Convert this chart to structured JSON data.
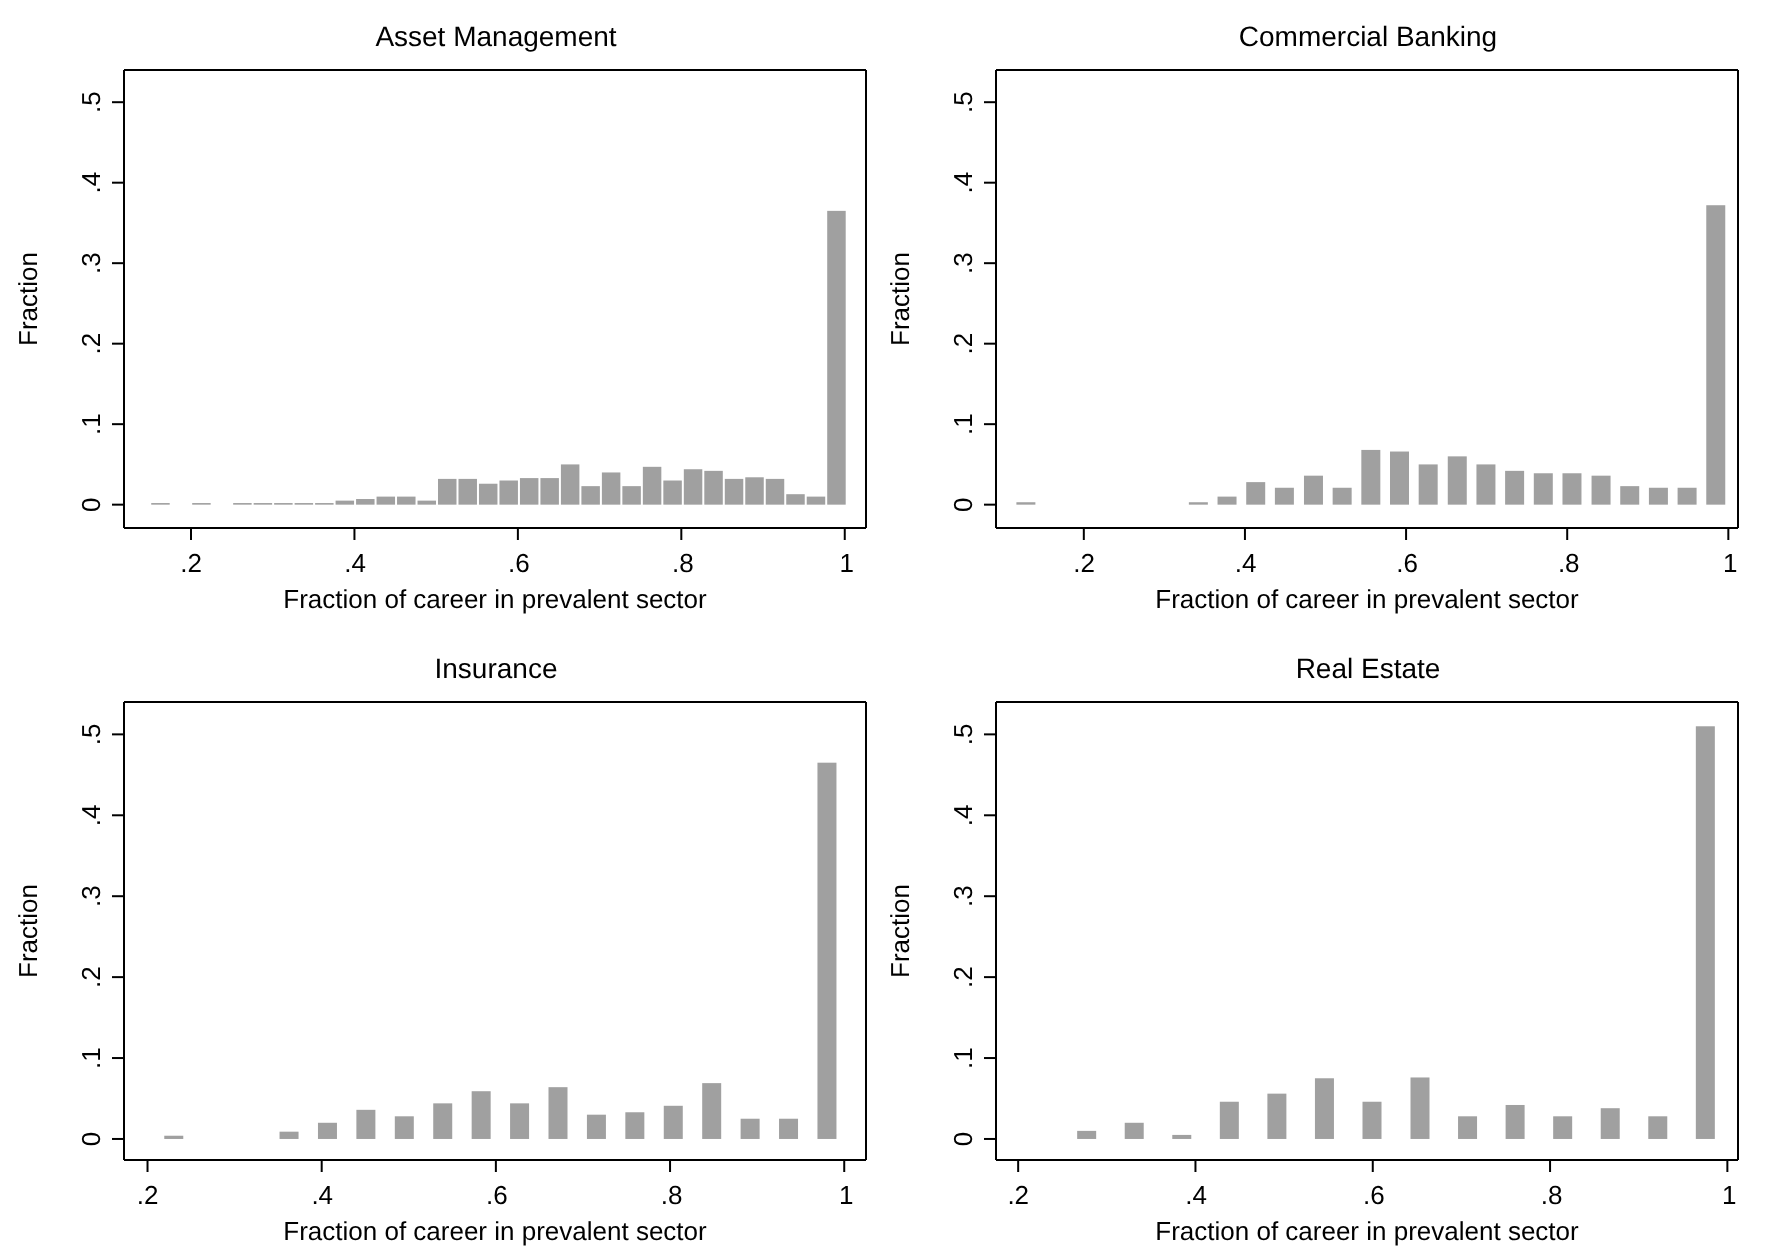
{
  "chart_data": [
    {
      "type": "histogram",
      "title": "Asset Management",
      "xlabel": "Fraction of career in prevalent sector",
      "ylabel": "Fraction",
      "color": "#a0a0a0",
      "bins": [
        0.15,
        0.175,
        0.2,
        0.225,
        0.25,
        0.275,
        0.3,
        0.325,
        0.35,
        0.375,
        0.4,
        0.425,
        0.45,
        0.475,
        0.5,
        0.525,
        0.55,
        0.575,
        0.6,
        0.625,
        0.65,
        0.675,
        0.7,
        0.725,
        0.75,
        0.775,
        0.8,
        0.825,
        0.85,
        0.875,
        0.9,
        0.925,
        0.95,
        0.975,
        1
      ],
      "values": [
        0.002,
        0,
        0.002,
        0,
        0.002,
        0.002,
        0.002,
        0.002,
        0.002,
        0.005,
        0.007,
        0.01,
        0.01,
        0.005,
        0.032,
        0.032,
        0.026,
        0.03,
        0.033,
        0.033,
        0.05,
        0.023,
        0.04,
        0.023,
        0.047,
        0.03,
        0.044,
        0.042,
        0.032,
        0.034,
        0.032,
        0.013,
        0.01,
        0.365
      ],
      "xlim": [
        0.118,
        1.026
      ],
      "ylim": [
        -0.029,
        0.54
      ],
      "xticks": [
        {
          "value": 0.2,
          "label": ".2"
        },
        {
          "value": 0.4,
          "label": ".4"
        },
        {
          "value": 0.6,
          "label": ".6"
        },
        {
          "value": 0.8,
          "label": ".8"
        },
        {
          "value": 1,
          "label": "1"
        }
      ],
      "yticks": [
        {
          "value": 0,
          "label": "0"
        },
        {
          "value": 0.1,
          "label": ".1"
        },
        {
          "value": 0.2,
          "label": ".2"
        },
        {
          "value": 0.3,
          "label": ".3"
        },
        {
          "value": 0.4,
          "label": ".4"
        },
        {
          "value": 0.5,
          "label": ".5"
        }
      ]
    },
    {
      "type": "histogram",
      "title": "Commercial Banking",
      "xlabel": "Fraction of career in prevalent sector",
      "ylabel": "Fraction",
      "color": "#a0a0a0",
      "bins": [
        0.11,
        0.146,
        0.324,
        0.359,
        0.395,
        0.43,
        0.466,
        0.502,
        0.537,
        0.573,
        0.608,
        0.644,
        0.68,
        0.715,
        0.751,
        0.786,
        0.822,
        0.858,
        0.893,
        0.929,
        0.964,
        1
      ],
      "values": [
        0.003,
        0,
        0.003,
        0.01,
        0.028,
        0.021,
        0.036,
        0.021,
        0.068,
        0.066,
        0.05,
        0.06,
        0.05,
        0.042,
        0.039,
        0.039,
        0.036,
        0.023,
        0.021,
        0.021,
        0.372
      ],
      "xlim": [
        0.091,
        1.012
      ],
      "ylim": [
        -0.029,
        0.54
      ],
      "xticks": [
        {
          "value": 0.2,
          "label": ".2"
        },
        {
          "value": 0.4,
          "label": ".4"
        },
        {
          "value": 0.6,
          "label": ".6"
        },
        {
          "value": 0.8,
          "label": ".8"
        },
        {
          "value": 1,
          "label": "1"
        }
      ],
      "yticks": [
        {
          "value": 0,
          "label": "0"
        },
        {
          "value": 0.1,
          "label": ".1"
        },
        {
          "value": 0.2,
          "label": ".2"
        },
        {
          "value": 0.3,
          "label": ".3"
        },
        {
          "value": 0.4,
          "label": ".4"
        },
        {
          "value": 0.5,
          "label": ".5"
        }
      ]
    },
    {
      "type": "histogram",
      "title": "Insurance",
      "xlabel": "Fraction of career in prevalent sector",
      "ylabel": "Fraction",
      "color": "#a0a0a0",
      "bins": [
        0.208,
        0.252,
        0.34,
        0.384,
        0.428,
        0.472,
        0.516,
        0.56,
        0.604,
        0.648,
        0.692,
        0.736,
        0.78,
        0.824,
        0.868,
        0.912,
        0.956,
        1
      ],
      "values": [
        0.004,
        0,
        0.009,
        0.02,
        0.036,
        0.028,
        0.044,
        0.059,
        0.044,
        0.064,
        0.03,
        0.033,
        0.041,
        0.069,
        0.025,
        0.025,
        0.465
      ],
      "xlim": [
        0.173,
        1.025
      ],
      "ylim": [
        -0.026,
        0.54
      ],
      "xticks": [
        {
          "value": 0.2,
          "label": ".2"
        },
        {
          "value": 0.4,
          "label": ".4"
        },
        {
          "value": 0.6,
          "label": ".6"
        },
        {
          "value": 0.8,
          "label": ".8"
        },
        {
          "value": 1,
          "label": "1"
        }
      ],
      "yticks": [
        {
          "value": 0,
          "label": "0"
        },
        {
          "value": 0.1,
          "label": ".1"
        },
        {
          "value": 0.2,
          "label": ".2"
        },
        {
          "value": 0.3,
          "label": ".3"
        },
        {
          "value": 0.4,
          "label": ".4"
        },
        {
          "value": 0.5,
          "label": ".5"
        }
      ]
    },
    {
      "type": "histogram",
      "title": "Real Estate",
      "xlabel": "Fraction of career in prevalent sector",
      "ylabel": "Fraction",
      "color": "#a0a0a0",
      "bins": [
        0.25,
        0.304,
        0.357,
        0.411,
        0.464,
        0.518,
        0.571,
        0.625,
        0.679,
        0.732,
        0.786,
        0.839,
        0.893,
        0.946,
        1
      ],
      "values": [
        0.01,
        0.02,
        0.005,
        0.046,
        0.056,
        0.075,
        0.046,
        0.076,
        0.028,
        0.042,
        0.028,
        0.038,
        0.028,
        0.51
      ],
      "xlim": [
        0.175,
        1.012
      ],
      "ylim": [
        -0.026,
        0.54
      ],
      "xticks": [
        {
          "value": 0.2,
          "label": ".2"
        },
        {
          "value": 0.4,
          "label": ".4"
        },
        {
          "value": 0.6,
          "label": ".6"
        },
        {
          "value": 0.8,
          "label": ".8"
        },
        {
          "value": 1,
          "label": "1"
        }
      ],
      "yticks": [
        {
          "value": 0,
          "label": "0"
        },
        {
          "value": 0.1,
          "label": ".1"
        },
        {
          "value": 0.2,
          "label": ".2"
        },
        {
          "value": 0.3,
          "label": ".3"
        },
        {
          "value": 0.4,
          "label": ".4"
        },
        {
          "value": 0.5,
          "label": ".5"
        }
      ]
    }
  ]
}
